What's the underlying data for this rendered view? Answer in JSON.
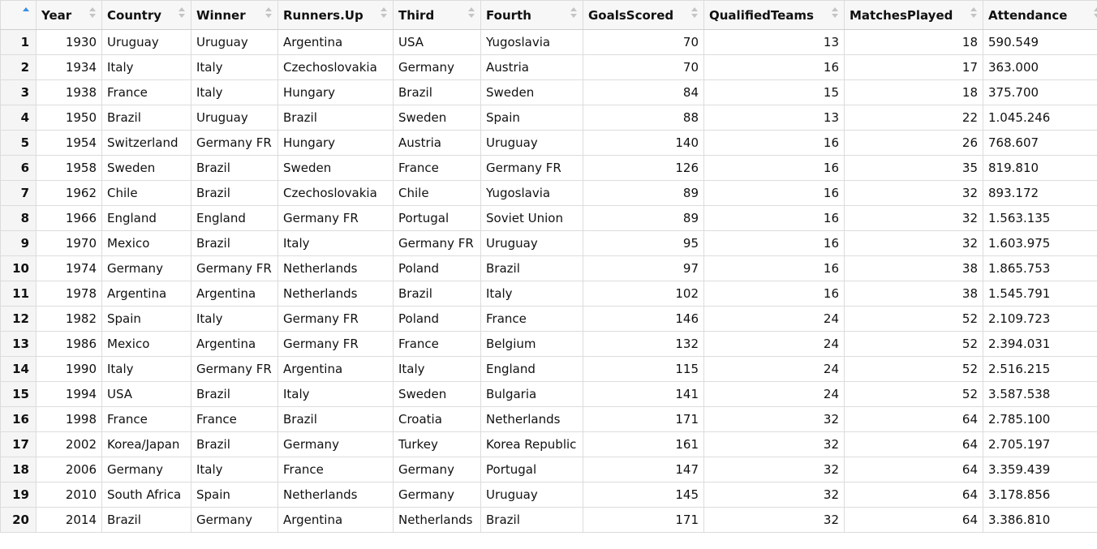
{
  "columns": [
    {
      "key": "year",
      "label": "Year",
      "align": "num",
      "width": 81
    },
    {
      "key": "country",
      "label": "Country",
      "align": "txt",
      "width": 110
    },
    {
      "key": "winner",
      "label": "Winner",
      "align": "txt",
      "width": 107
    },
    {
      "key": "runners_up",
      "label": "Runners.Up",
      "align": "txt",
      "width": 142
    },
    {
      "key": "third",
      "label": "Third",
      "align": "txt",
      "width": 108
    },
    {
      "key": "fourth",
      "label": "Fourth",
      "align": "txt",
      "width": 126
    },
    {
      "key": "goals_scored",
      "label": "GoalsScored",
      "align": "num",
      "width": 149
    },
    {
      "key": "qualified_teams",
      "label": "QualifiedTeams",
      "align": "num",
      "width": 173
    },
    {
      "key": "matches_played",
      "label": "MatchesPlayed",
      "align": "num",
      "width": 171
    },
    {
      "key": "attendance",
      "label": "Attendance",
      "align": "txt",
      "width": 152
    }
  ],
  "rows": [
    {
      "idx": "1",
      "year": "1930",
      "country": "Uruguay",
      "winner": "Uruguay",
      "runners_up": "Argentina",
      "third": "USA",
      "fourth": "Yugoslavia",
      "goals_scored": "70",
      "qualified_teams": "13",
      "matches_played": "18",
      "attendance": "590.549"
    },
    {
      "idx": "2",
      "year": "1934",
      "country": "Italy",
      "winner": "Italy",
      "runners_up": "Czechoslovakia",
      "third": "Germany",
      "fourth": "Austria",
      "goals_scored": "70",
      "qualified_teams": "16",
      "matches_played": "17",
      "attendance": "363.000"
    },
    {
      "idx": "3",
      "year": "1938",
      "country": "France",
      "winner": "Italy",
      "runners_up": "Hungary",
      "third": "Brazil",
      "fourth": "Sweden",
      "goals_scored": "84",
      "qualified_teams": "15",
      "matches_played": "18",
      "attendance": "375.700"
    },
    {
      "idx": "4",
      "year": "1950",
      "country": "Brazil",
      "winner": "Uruguay",
      "runners_up": "Brazil",
      "third": "Sweden",
      "fourth": "Spain",
      "goals_scored": "88",
      "qualified_teams": "13",
      "matches_played": "22",
      "attendance": "1.045.246"
    },
    {
      "idx": "5",
      "year": "1954",
      "country": "Switzerland",
      "winner": "Germany FR",
      "runners_up": "Hungary",
      "third": "Austria",
      "fourth": "Uruguay",
      "goals_scored": "140",
      "qualified_teams": "16",
      "matches_played": "26",
      "attendance": "768.607"
    },
    {
      "idx": "6",
      "year": "1958",
      "country": "Sweden",
      "winner": "Brazil",
      "runners_up": "Sweden",
      "third": "France",
      "fourth": "Germany FR",
      "goals_scored": "126",
      "qualified_teams": "16",
      "matches_played": "35",
      "attendance": "819.810"
    },
    {
      "idx": "7",
      "year": "1962",
      "country": "Chile",
      "winner": "Brazil",
      "runners_up": "Czechoslovakia",
      "third": "Chile",
      "fourth": "Yugoslavia",
      "goals_scored": "89",
      "qualified_teams": "16",
      "matches_played": "32",
      "attendance": "893.172"
    },
    {
      "idx": "8",
      "year": "1966",
      "country": "England",
      "winner": "England",
      "runners_up": "Germany FR",
      "third": "Portugal",
      "fourth": "Soviet Union",
      "goals_scored": "89",
      "qualified_teams": "16",
      "matches_played": "32",
      "attendance": "1.563.135"
    },
    {
      "idx": "9",
      "year": "1970",
      "country": "Mexico",
      "winner": "Brazil",
      "runners_up": "Italy",
      "third": "Germany FR",
      "fourth": "Uruguay",
      "goals_scored": "95",
      "qualified_teams": "16",
      "matches_played": "32",
      "attendance": "1.603.975"
    },
    {
      "idx": "10",
      "year": "1974",
      "country": "Germany",
      "winner": "Germany FR",
      "runners_up": "Netherlands",
      "third": "Poland",
      "fourth": "Brazil",
      "goals_scored": "97",
      "qualified_teams": "16",
      "matches_played": "38",
      "attendance": "1.865.753"
    },
    {
      "idx": "11",
      "year": "1978",
      "country": "Argentina",
      "winner": "Argentina",
      "runners_up": "Netherlands",
      "third": "Brazil",
      "fourth": "Italy",
      "goals_scored": "102",
      "qualified_teams": "16",
      "matches_played": "38",
      "attendance": "1.545.791"
    },
    {
      "idx": "12",
      "year": "1982",
      "country": "Spain",
      "winner": "Italy",
      "runners_up": "Germany FR",
      "third": "Poland",
      "fourth": "France",
      "goals_scored": "146",
      "qualified_teams": "24",
      "matches_played": "52",
      "attendance": "2.109.723"
    },
    {
      "idx": "13",
      "year": "1986",
      "country": "Mexico",
      "winner": "Argentina",
      "runners_up": "Germany FR",
      "third": "France",
      "fourth": "Belgium",
      "goals_scored": "132",
      "qualified_teams": "24",
      "matches_played": "52",
      "attendance": "2.394.031"
    },
    {
      "idx": "14",
      "year": "1990",
      "country": "Italy",
      "winner": "Germany FR",
      "runners_up": "Argentina",
      "third": "Italy",
      "fourth": "England",
      "goals_scored": "115",
      "qualified_teams": "24",
      "matches_played": "52",
      "attendance": "2.516.215"
    },
    {
      "idx": "15",
      "year": "1994",
      "country": "USA",
      "winner": "Brazil",
      "runners_up": "Italy",
      "third": "Sweden",
      "fourth": "Bulgaria",
      "goals_scored": "141",
      "qualified_teams": "24",
      "matches_played": "52",
      "attendance": "3.587.538"
    },
    {
      "idx": "16",
      "year": "1998",
      "country": "France",
      "winner": "France",
      "runners_up": "Brazil",
      "third": "Croatia",
      "fourth": "Netherlands",
      "goals_scored": "171",
      "qualified_teams": "32",
      "matches_played": "64",
      "attendance": "2.785.100"
    },
    {
      "idx": "17",
      "year": "2002",
      "country": "Korea/Japan",
      "winner": "Brazil",
      "runners_up": "Germany",
      "third": "Turkey",
      "fourth": "Korea Republic",
      "goals_scored": "161",
      "qualified_teams": "32",
      "matches_played": "64",
      "attendance": "2.705.197"
    },
    {
      "idx": "18",
      "year": "2006",
      "country": "Germany",
      "winner": "Italy",
      "runners_up": "France",
      "third": "Germany",
      "fourth": "Portugal",
      "goals_scored": "147",
      "qualified_teams": "32",
      "matches_played": "64",
      "attendance": "3.359.439"
    },
    {
      "idx": "19",
      "year": "2010",
      "country": "South Africa",
      "winner": "Spain",
      "runners_up": "Netherlands",
      "third": "Germany",
      "fourth": "Uruguay",
      "goals_scored": "145",
      "qualified_teams": "32",
      "matches_played": "64",
      "attendance": "3.178.856"
    },
    {
      "idx": "20",
      "year": "2014",
      "country": "Brazil",
      "winner": "Germany",
      "runners_up": "Argentina",
      "third": "Netherlands",
      "fourth": "Brazil",
      "goals_scored": "171",
      "qualified_teams": "32",
      "matches_played": "64",
      "attendance": "3.386.810"
    }
  ],
  "sort": {
    "active_column": "index",
    "direction": "ascending"
  },
  "colors": {
    "sort_active": "#3a8ee6",
    "sort_inactive": "#c4c4c4"
  }
}
